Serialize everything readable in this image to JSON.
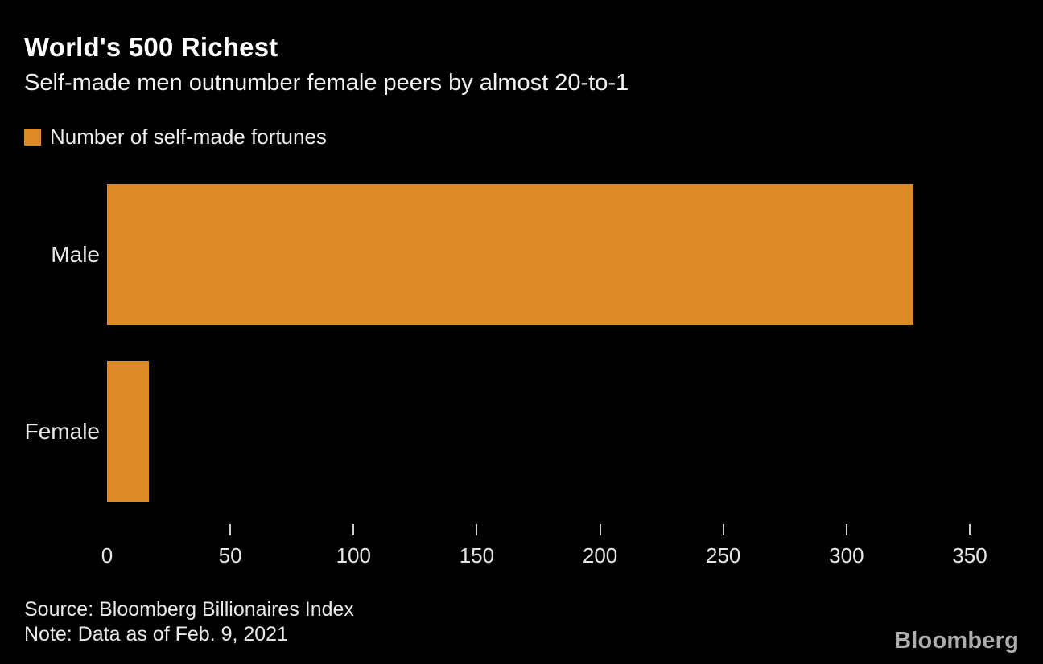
{
  "header": {
    "title": "World's 500 Richest",
    "subtitle": "Self-made men outnumber female peers by almost 20-to-1"
  },
  "chart_data": {
    "type": "bar",
    "orientation": "horizontal",
    "title": "World's 500 Richest",
    "subtitle": "Self-made men outnumber female peers by almost 20-to-1",
    "legend": [
      "Number of self-made fortunes"
    ],
    "legend_position": "top-left",
    "categories": [
      "Male",
      "Female"
    ],
    "values": [
      327,
      17
    ],
    "xlabel": "",
    "ylabel": "",
    "xlim": [
      0,
      350
    ],
    "xticks": [
      0,
      50,
      100,
      150,
      200,
      250,
      300,
      350
    ],
    "grid": false
  },
  "footer": {
    "source": "Source: Bloomberg Billionaires Index",
    "note": "Note: Data as of Feb. 9, 2021",
    "brand": "Bloomberg"
  },
  "colors": {
    "background": "#000000",
    "bar": "#DC8B28",
    "title_text": "#FFFFFF",
    "body_text": "#E9E9E7",
    "tick_mark": "#CFCFCD",
    "logo_text": "#ADADAD"
  }
}
